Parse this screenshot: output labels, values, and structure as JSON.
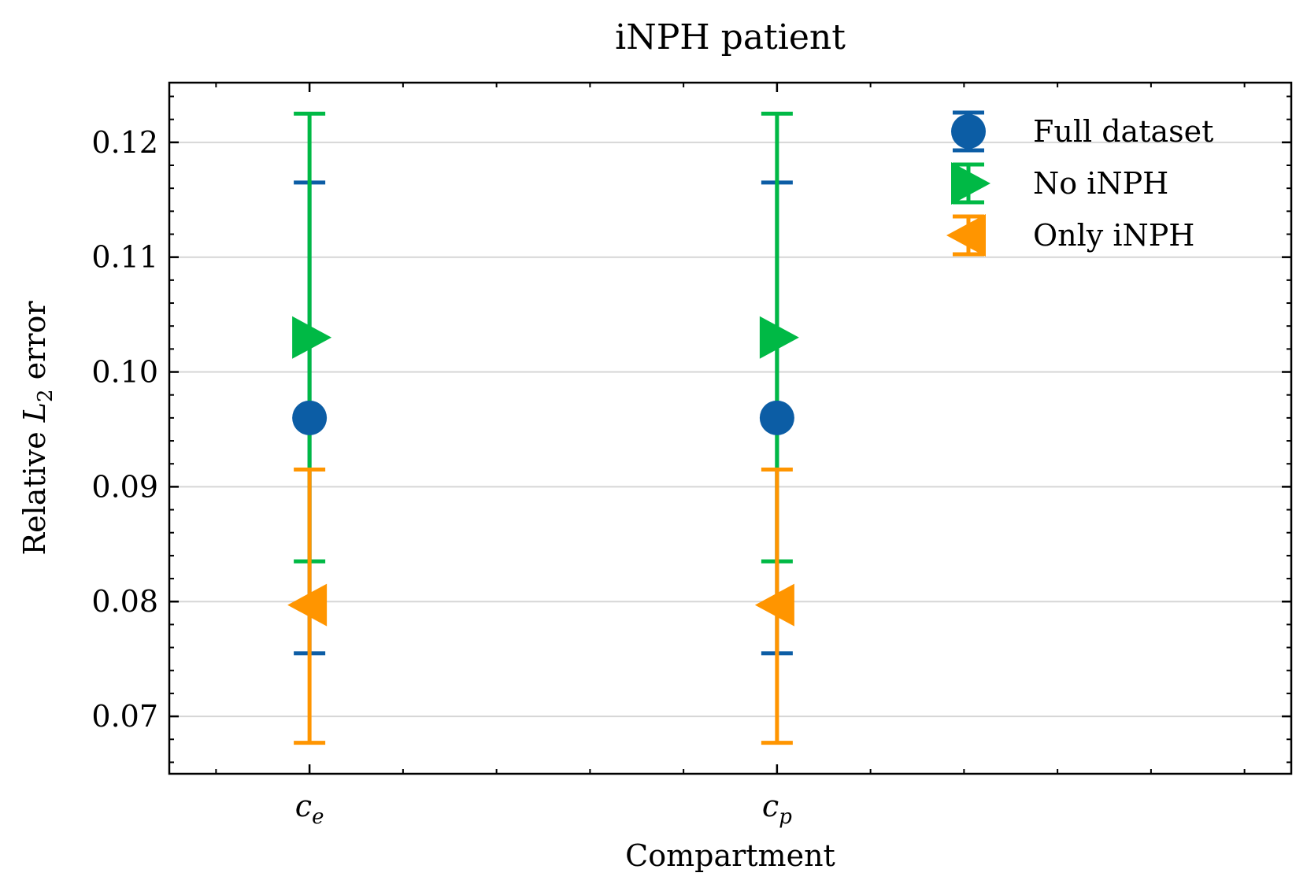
{
  "chart_data": {
    "type": "errorbar",
    "title": "iNPH patient",
    "xlabel": "Compartment",
    "ylabel": {
      "prefix": "Relative ",
      "var": "L",
      "sub": "2",
      "suffix": " error"
    },
    "categories": [
      {
        "base": "c",
        "sub": "e"
      },
      {
        "base": "c",
        "sub": "p"
      }
    ],
    "xlim": [
      -0.3,
      2.1
    ],
    "ylim": [
      0.065,
      0.1252
    ],
    "yticks": [
      0.07,
      0.08,
      0.09,
      0.1,
      0.11,
      0.12
    ],
    "ytick_labels": [
      "0.07",
      "0.08",
      "0.09",
      "0.10",
      "0.11",
      "0.12"
    ],
    "grid": "horizontal",
    "legend_position": "top-right",
    "series": [
      {
        "name": "Full dataset",
        "marker": "circle",
        "color": "#0C5DA5",
        "values": [
          0.096,
          0.096
        ],
        "lower": [
          0.0755,
          0.0755
        ],
        "upper": [
          0.1165,
          0.1165
        ]
      },
      {
        "name": "No iNPH",
        "marker": "triangle-right",
        "color": "#00B945",
        "values": [
          0.103,
          0.103
        ],
        "lower": [
          0.0835,
          0.0835
        ],
        "upper": [
          0.1225,
          0.1225
        ]
      },
      {
        "name": "Only iNPH",
        "marker": "triangle-left",
        "color": "#FF9500",
        "values": [
          0.0797,
          0.0797
        ],
        "lower": [
          0.0677,
          0.0677
        ],
        "upper": [
          0.0915,
          0.0915
        ]
      }
    ]
  }
}
